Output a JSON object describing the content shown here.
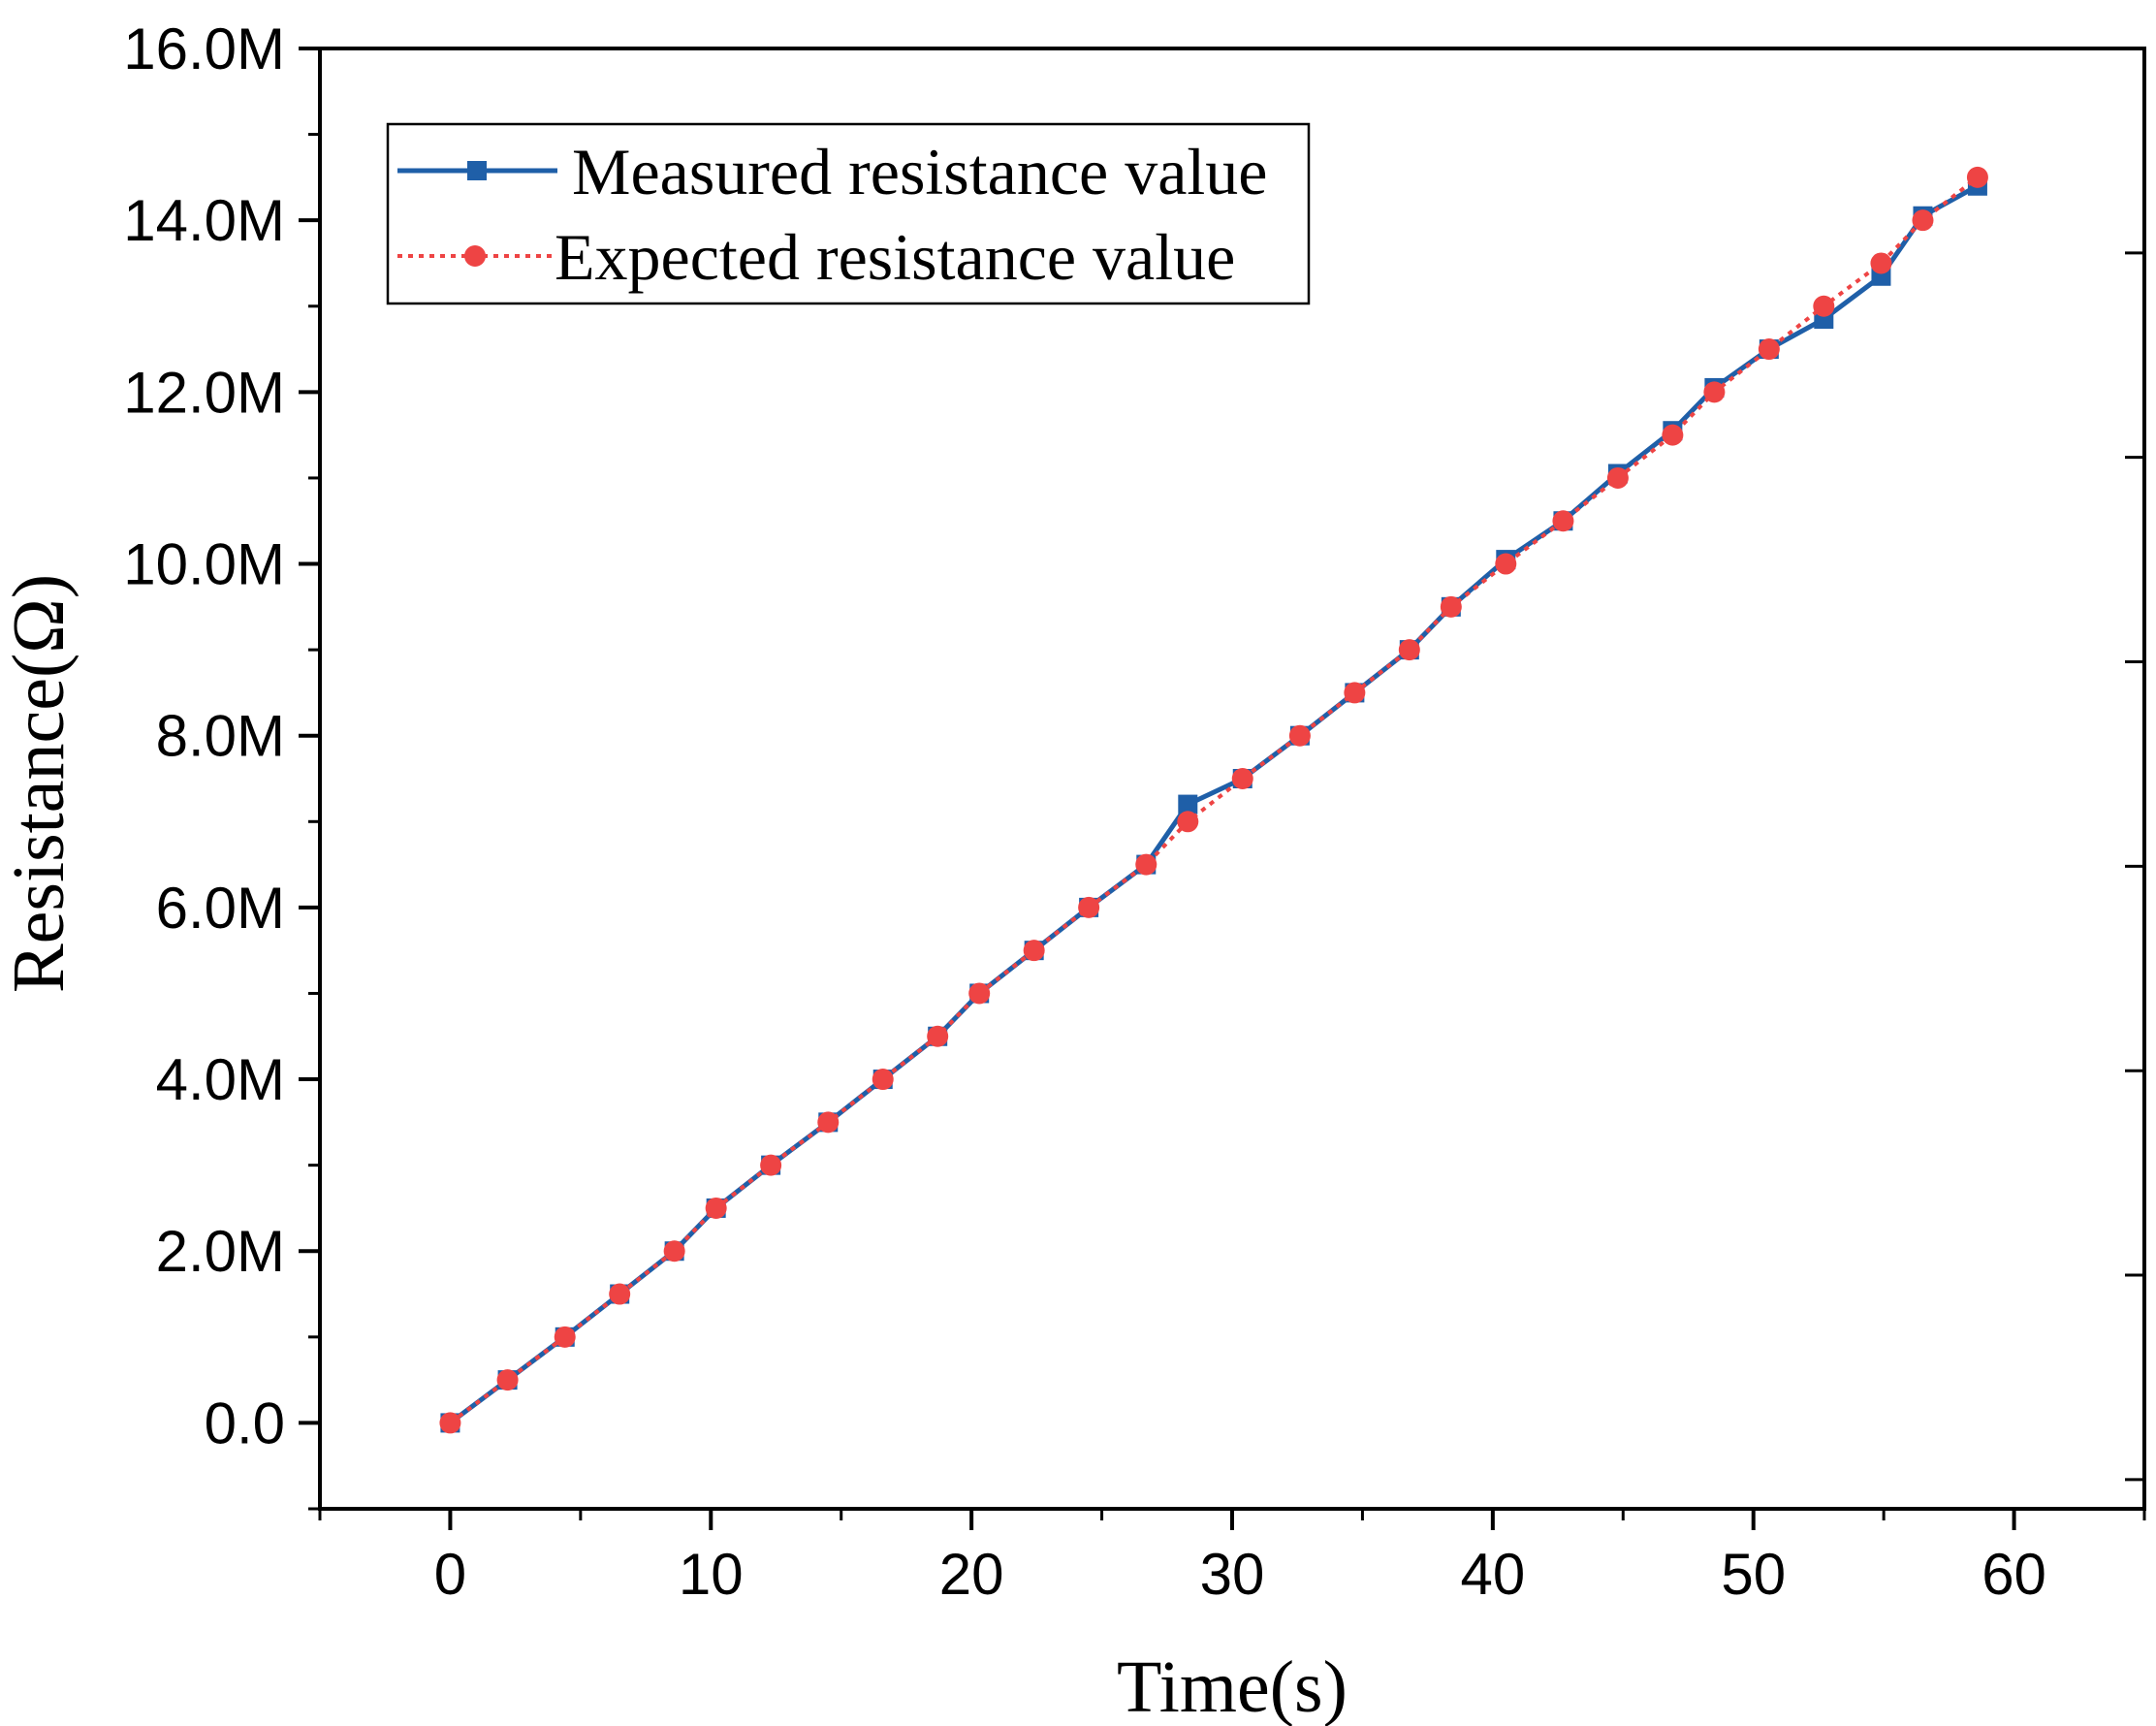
{
  "chart_data": {
    "type": "line",
    "title": "",
    "xlabel": "Time(s)",
    "ylabel": "Resistance(Ω)",
    "xlim": [
      -5,
      65
    ],
    "ylim": [
      -1000000,
      16000000
    ],
    "x_ticks": [
      0,
      10,
      20,
      30,
      40,
      50,
      60
    ],
    "x_tick_labels": [
      "0",
      "10",
      "20",
      "30",
      "40",
      "50",
      "60"
    ],
    "y_ticks": [
      0,
      2000000,
      4000000,
      6000000,
      8000000,
      10000000,
      12000000,
      14000000,
      16000000
    ],
    "y_tick_labels": [
      "0.0",
      "2.0M",
      "4.0M",
      "6.0M",
      "8.0M",
      "10.0M",
      "12.0M",
      "14.0M",
      "16.0M"
    ],
    "grid": false,
    "legend_position": "top-left",
    "series": [
      {
        "name": "Measured resistance value",
        "color": "#1f5fa8",
        "line_style": "solid",
        "marker": "square",
        "x": [
          0,
          2.2,
          4.4,
          6.5,
          8.6,
          10.2,
          12.3,
          14.5,
          16.6,
          18.7,
          20.3,
          22.4,
          24.5,
          26.7,
          28.3,
          30.4,
          32.6,
          34.7,
          36.8,
          38.4,
          40.5,
          42.7,
          44.8,
          46.9,
          48.5,
          50.6,
          52.7,
          54.9,
          56.5,
          58.6
        ],
        "y": [
          0,
          500000,
          1000000,
          1500000,
          2000000,
          2500000,
          3000000,
          3500000,
          4000000,
          4500000,
          5000000,
          5500000,
          6000000,
          6500000,
          7200000,
          7500000,
          8000000,
          8500000,
          9000000,
          9500000,
          10050000,
          10500000,
          11050000,
          11550000,
          12050000,
          12500000,
          12850000,
          13350000,
          14050000,
          14400000
        ]
      },
      {
        "name": "Expected resistance value",
        "color": "#ee4444",
        "line_style": "dotted",
        "marker": "circle",
        "x": [
          0,
          2.2,
          4.4,
          6.5,
          8.6,
          10.2,
          12.3,
          14.5,
          16.6,
          18.7,
          20.3,
          22.4,
          24.5,
          26.7,
          28.3,
          30.4,
          32.6,
          34.7,
          36.8,
          38.4,
          40.5,
          42.7,
          44.8,
          46.9,
          48.5,
          50.6,
          52.7,
          54.9,
          56.5,
          58.6
        ],
        "y": [
          0,
          500000,
          1000000,
          1500000,
          2000000,
          2500000,
          3000000,
          3500000,
          4000000,
          4500000,
          5000000,
          5500000,
          6000000,
          6500000,
          7000000,
          7500000,
          8000000,
          8500000,
          9000000,
          9500000,
          10000000,
          10500000,
          11000000,
          11500000,
          12000000,
          12500000,
          13000000,
          13500000,
          14000000,
          14500000
        ]
      }
    ]
  }
}
